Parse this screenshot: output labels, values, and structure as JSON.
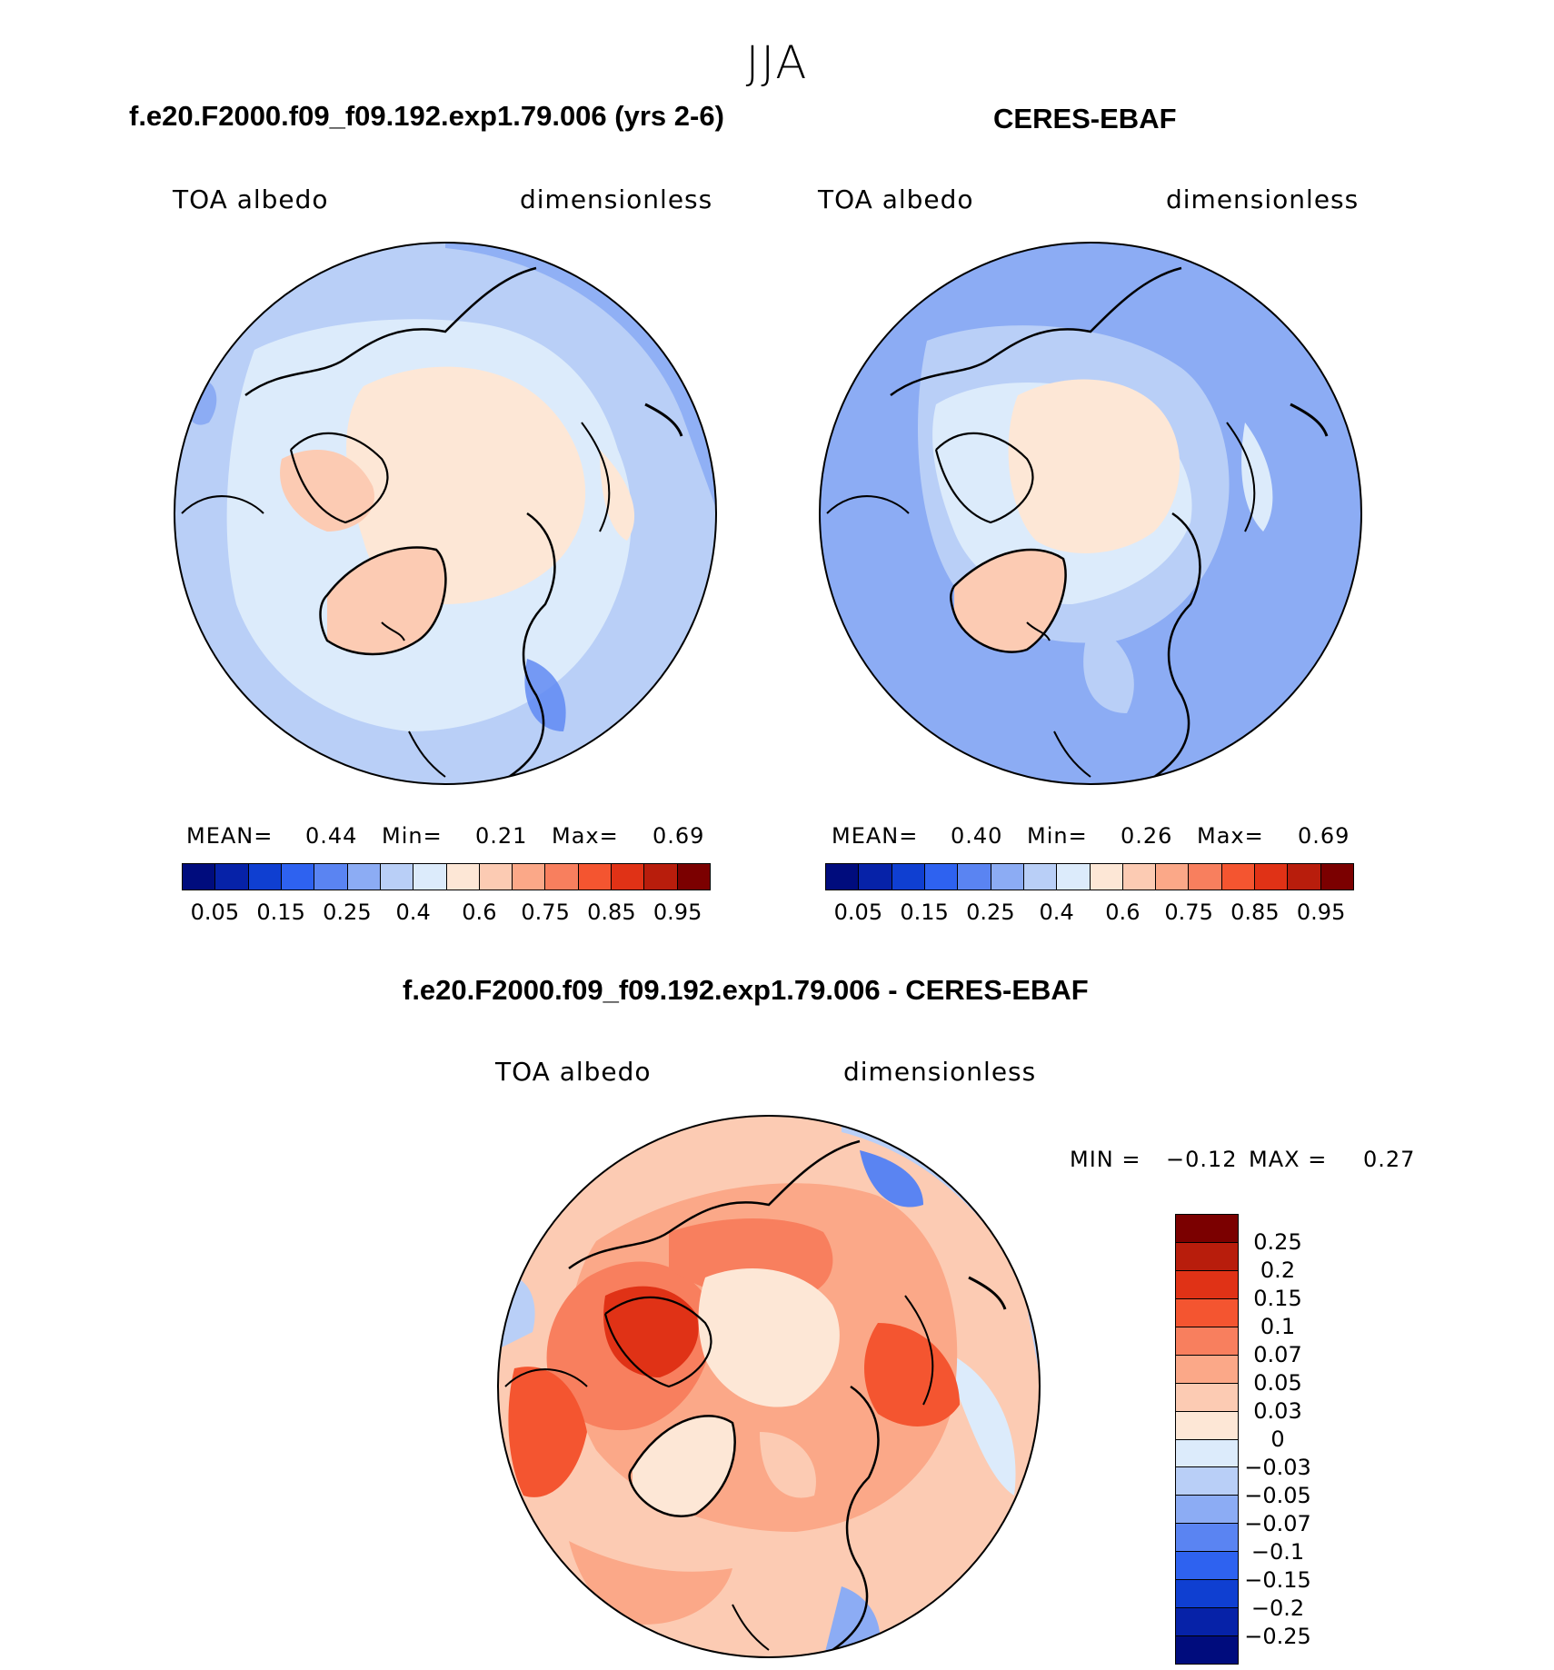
{
  "season": "JJA",
  "panels": [
    {
      "title": "f.e20.F2000.f09_f09.192.exp1.79.006 (yrs 2-6)",
      "variable": "TOA albedo",
      "units": "dimensionless",
      "stats": {
        "mean_label": "MEAN=",
        "mean": "0.44",
        "min_label": "Min=",
        "min": "0.21",
        "max_label": "Max=",
        "max": "0.69"
      },
      "dominant_value": 0.3
    },
    {
      "title": "CERES-EBAF",
      "variable": "TOA albedo",
      "units": "dimensionless",
      "stats": {
        "mean_label": "MEAN=",
        "mean": "0.40",
        "min_label": "Min=",
        "min": "0.26",
        "max_label": "Max=",
        "max": "0.69"
      },
      "dominant_value": 0.3
    }
  ],
  "diff_panel": {
    "title": "f.e20.F2000.f09_f09.192.exp1.79.006 - CERES-EBAF",
    "variable": "TOA albedo",
    "units": "dimensionless",
    "stats": {
      "min_label": "MIN =",
      "min": "−0.12",
      "max_label": "MAX =",
      "max": "0.27"
    }
  },
  "colorbar_main": {
    "colors": [
      "#000c7d",
      "#0622a8",
      "#0f3fd1",
      "#2e62f0",
      "#5a84f2",
      "#8cacf4",
      "#b9cff7",
      "#dcebfb",
      "#fde7d6",
      "#fccbb3",
      "#fba888",
      "#f87f5e",
      "#f45530",
      "#e03216",
      "#b81d0c",
      "#7b0000"
    ],
    "labels": [
      "0.05",
      "0.15",
      "0.25",
      "0.4",
      "0.6",
      "0.75",
      "0.85",
      "0.95"
    ]
  },
  "colorbar_diff": {
    "colors": [
      "#7b0000",
      "#b81d0c",
      "#e03216",
      "#f45530",
      "#f87f5e",
      "#fba888",
      "#fccbb3",
      "#fde7d6",
      "#dcebfb",
      "#b9cff7",
      "#8cacf4",
      "#5a84f2",
      "#2e62f0",
      "#0f3fd1",
      "#0622a8",
      "#000c7d"
    ],
    "labels": [
      "0.25",
      "0.2",
      "0.15",
      "0.1",
      "0.07",
      "0.05",
      "0.03",
      "0",
      "−0.03",
      "−0.05",
      "−0.07",
      "−0.1",
      "−0.15",
      "−0.2",
      "−0.25"
    ]
  }
}
